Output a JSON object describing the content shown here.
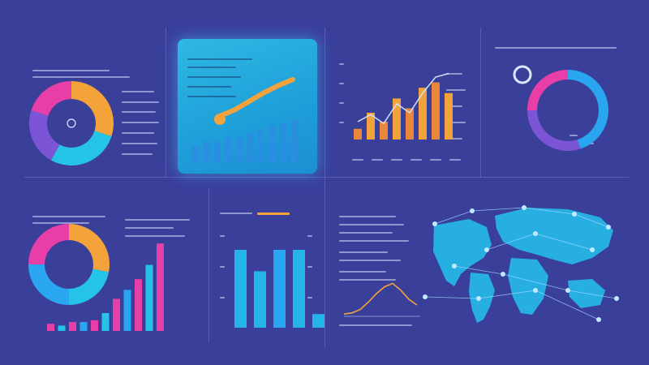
{
  "colors": {
    "background": "#3a3f9a",
    "cyan": "#25c4e6",
    "blue": "#2aa6f0",
    "magenta": "#e83ea8",
    "orange": "#f4a33a",
    "purple": "#7b55d6"
  },
  "panels": {
    "top_left_title": "",
    "highlight_title": "",
    "top_line_title": "",
    "bottom_left_title": "",
    "bottom_bar_title": ""
  },
  "chart_data": [
    {
      "type": "pie",
      "id": "donut-top-left",
      "values": [
        30,
        28,
        22,
        20
      ],
      "colors": [
        "#f4a33a",
        "#25c4e6",
        "#7b55d6",
        "#e83ea8"
      ]
    },
    {
      "type": "bar",
      "id": "highlight-bars",
      "values": [
        22,
        28,
        28,
        34,
        34,
        40,
        45,
        50,
        54,
        58
      ],
      "ylim": [
        0,
        100
      ],
      "trend": [
        20,
        30,
        44,
        58,
        70,
        80
      ]
    },
    {
      "type": "bar",
      "id": "top-right-combo",
      "values": [
        12,
        30,
        20,
        46,
        35,
        58,
        64,
        52
      ],
      "line": [
        20,
        28,
        18,
        40,
        30,
        52,
        70,
        74
      ],
      "ylim": [
        0,
        100
      ]
    },
    {
      "type": "pie",
      "id": "donut-far-right",
      "values": [
        45,
        30,
        25
      ],
      "colors": [
        "#2aa6f0",
        "#7b55d6",
        "#e83ea8"
      ]
    },
    {
      "type": "pie",
      "id": "donut-bottom-left",
      "values": [
        28,
        22,
        25,
        25
      ],
      "colors": [
        "#f4a33a",
        "#25c4e6",
        "#2aa6f0",
        "#e83ea8"
      ]
    },
    {
      "type": "bar",
      "id": "bottom-left-bars",
      "values": [
        8,
        6,
        10,
        10,
        12,
        20,
        36,
        46,
        58,
        74,
        98
      ],
      "ylim": [
        0,
        100
      ]
    },
    {
      "type": "bar",
      "id": "bottom-middle-bars",
      "values": [
        80,
        58,
        80,
        80,
        14
      ],
      "ylim": [
        0,
        100
      ]
    },
    {
      "type": "line",
      "id": "bottom-right-line",
      "values": [
        4,
        6,
        12,
        25,
        40,
        52,
        58,
        46,
        30,
        20
      ],
      "ylim": [
        0,
        100
      ]
    }
  ]
}
